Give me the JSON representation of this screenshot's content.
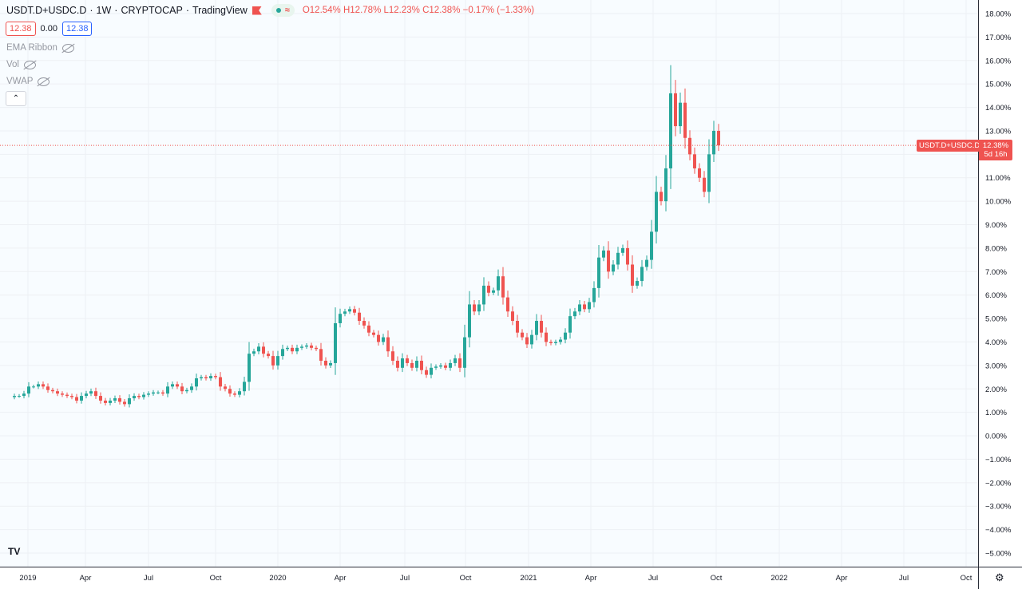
{
  "header": {
    "symbol": "USDT.D+USDC.D",
    "interval": "1W",
    "exchange": "CRYPTOCAP",
    "provider": "TradingView",
    "open": "O12.54%",
    "high": "H12.78%",
    "low": "L12.23%",
    "close": "C12.38%",
    "change": "−0.17% (−1.33%)",
    "bid": "12.38",
    "spread": "0.00",
    "ask": "12.38"
  },
  "indicators": [
    "EMA Ribbon",
    "Vol",
    "VWAP"
  ],
  "price_tag": {
    "label": "USDT.D+USDC.D",
    "value": "12.38%",
    "countdown": "5d 16h"
  },
  "colors": {
    "up": "#26a69a",
    "down": "#ef5350",
    "price_line": "#ef5350"
  },
  "icons": {
    "logo": "tradingview-logo-icon",
    "settings": "gear-icon",
    "visibility": "eye-off-icon"
  },
  "chart_data": {
    "type": "candlestick",
    "y_unit": "%",
    "ylim": [
      -5.3,
      18.3
    ],
    "y_ticks": [
      "18.00%",
      "17.00%",
      "16.00%",
      "15.00%",
      "14.00%",
      "13.00%",
      "12.00%",
      "11.00%",
      "10.00%",
      "9.00%",
      "8.00%",
      "7.00%",
      "6.00%",
      "5.00%",
      "4.00%",
      "3.00%",
      "2.00%",
      "1.00%",
      "0.00%",
      "−1.00%",
      "−2.00%",
      "−3.00%",
      "−4.00%",
      "−5.00%"
    ],
    "x_ticks": [
      "2019",
      "Apr",
      "Jul",
      "Oct",
      "2020",
      "Apr",
      "Jul",
      "Oct",
      "2021",
      "Apr",
      "Jul",
      "Oct",
      "2022",
      "Apr",
      "Jul",
      "Oct"
    ],
    "current_price": 12.38,
    "close_series": [
      1.7,
      1.7,
      1.8,
      2.1,
      2.1,
      2.2,
      2.1,
      1.95,
      1.9,
      1.8,
      1.75,
      1.7,
      1.65,
      1.5,
      1.7,
      1.8,
      1.9,
      1.7,
      1.5,
      1.4,
      1.5,
      1.6,
      1.45,
      1.35,
      1.6,
      1.7,
      1.65,
      1.75,
      1.8,
      1.85,
      1.85,
      1.8,
      2.1,
      2.2,
      2.1,
      1.9,
      1.95,
      2.1,
      2.45,
      2.5,
      2.45,
      2.55,
      2.5,
      2.1,
      2.0,
      1.8,
      1.75,
      1.9,
      2.3,
      3.5,
      3.6,
      3.8,
      3.5,
      3.4,
      3.0,
      3.4,
      3.7,
      3.75,
      3.6,
      3.75,
      3.8,
      3.85,
      3.75,
      3.7,
      3.2,
      3.0,
      3.1,
      4.8,
      5.2,
      5.3,
      5.4,
      5.25,
      4.9,
      4.7,
      4.4,
      4.3,
      4.0,
      4.2,
      3.6,
      3.2,
      2.9,
      3.3,
      3.1,
      2.9,
      3.2,
      2.8,
      2.6,
      2.9,
      2.95,
      3.0,
      2.9,
      3.1,
      3.3,
      2.9,
      4.2,
      5.6,
      5.3,
      5.6,
      6.4,
      6.1,
      6.2,
      6.8,
      5.9,
      5.3,
      4.9,
      4.4,
      4.2,
      3.9,
      4.3,
      4.9,
      4.4,
      4.0,
      3.95,
      4.0,
      4.1,
      4.4,
      5.1,
      5.3,
      5.6,
      5.4,
      5.7,
      6.3,
      7.6,
      7.9,
      7.0,
      7.3,
      7.8,
      8.0,
      7.3,
      6.4,
      6.6,
      7.2,
      7.5,
      8.7,
      10.4,
      10.0,
      11.4,
      14.6,
      13.2,
      14.2,
      12.7,
      12.0,
      11.4,
      11.0,
      10.4,
      12.0,
      13.0,
      12.38
    ]
  }
}
